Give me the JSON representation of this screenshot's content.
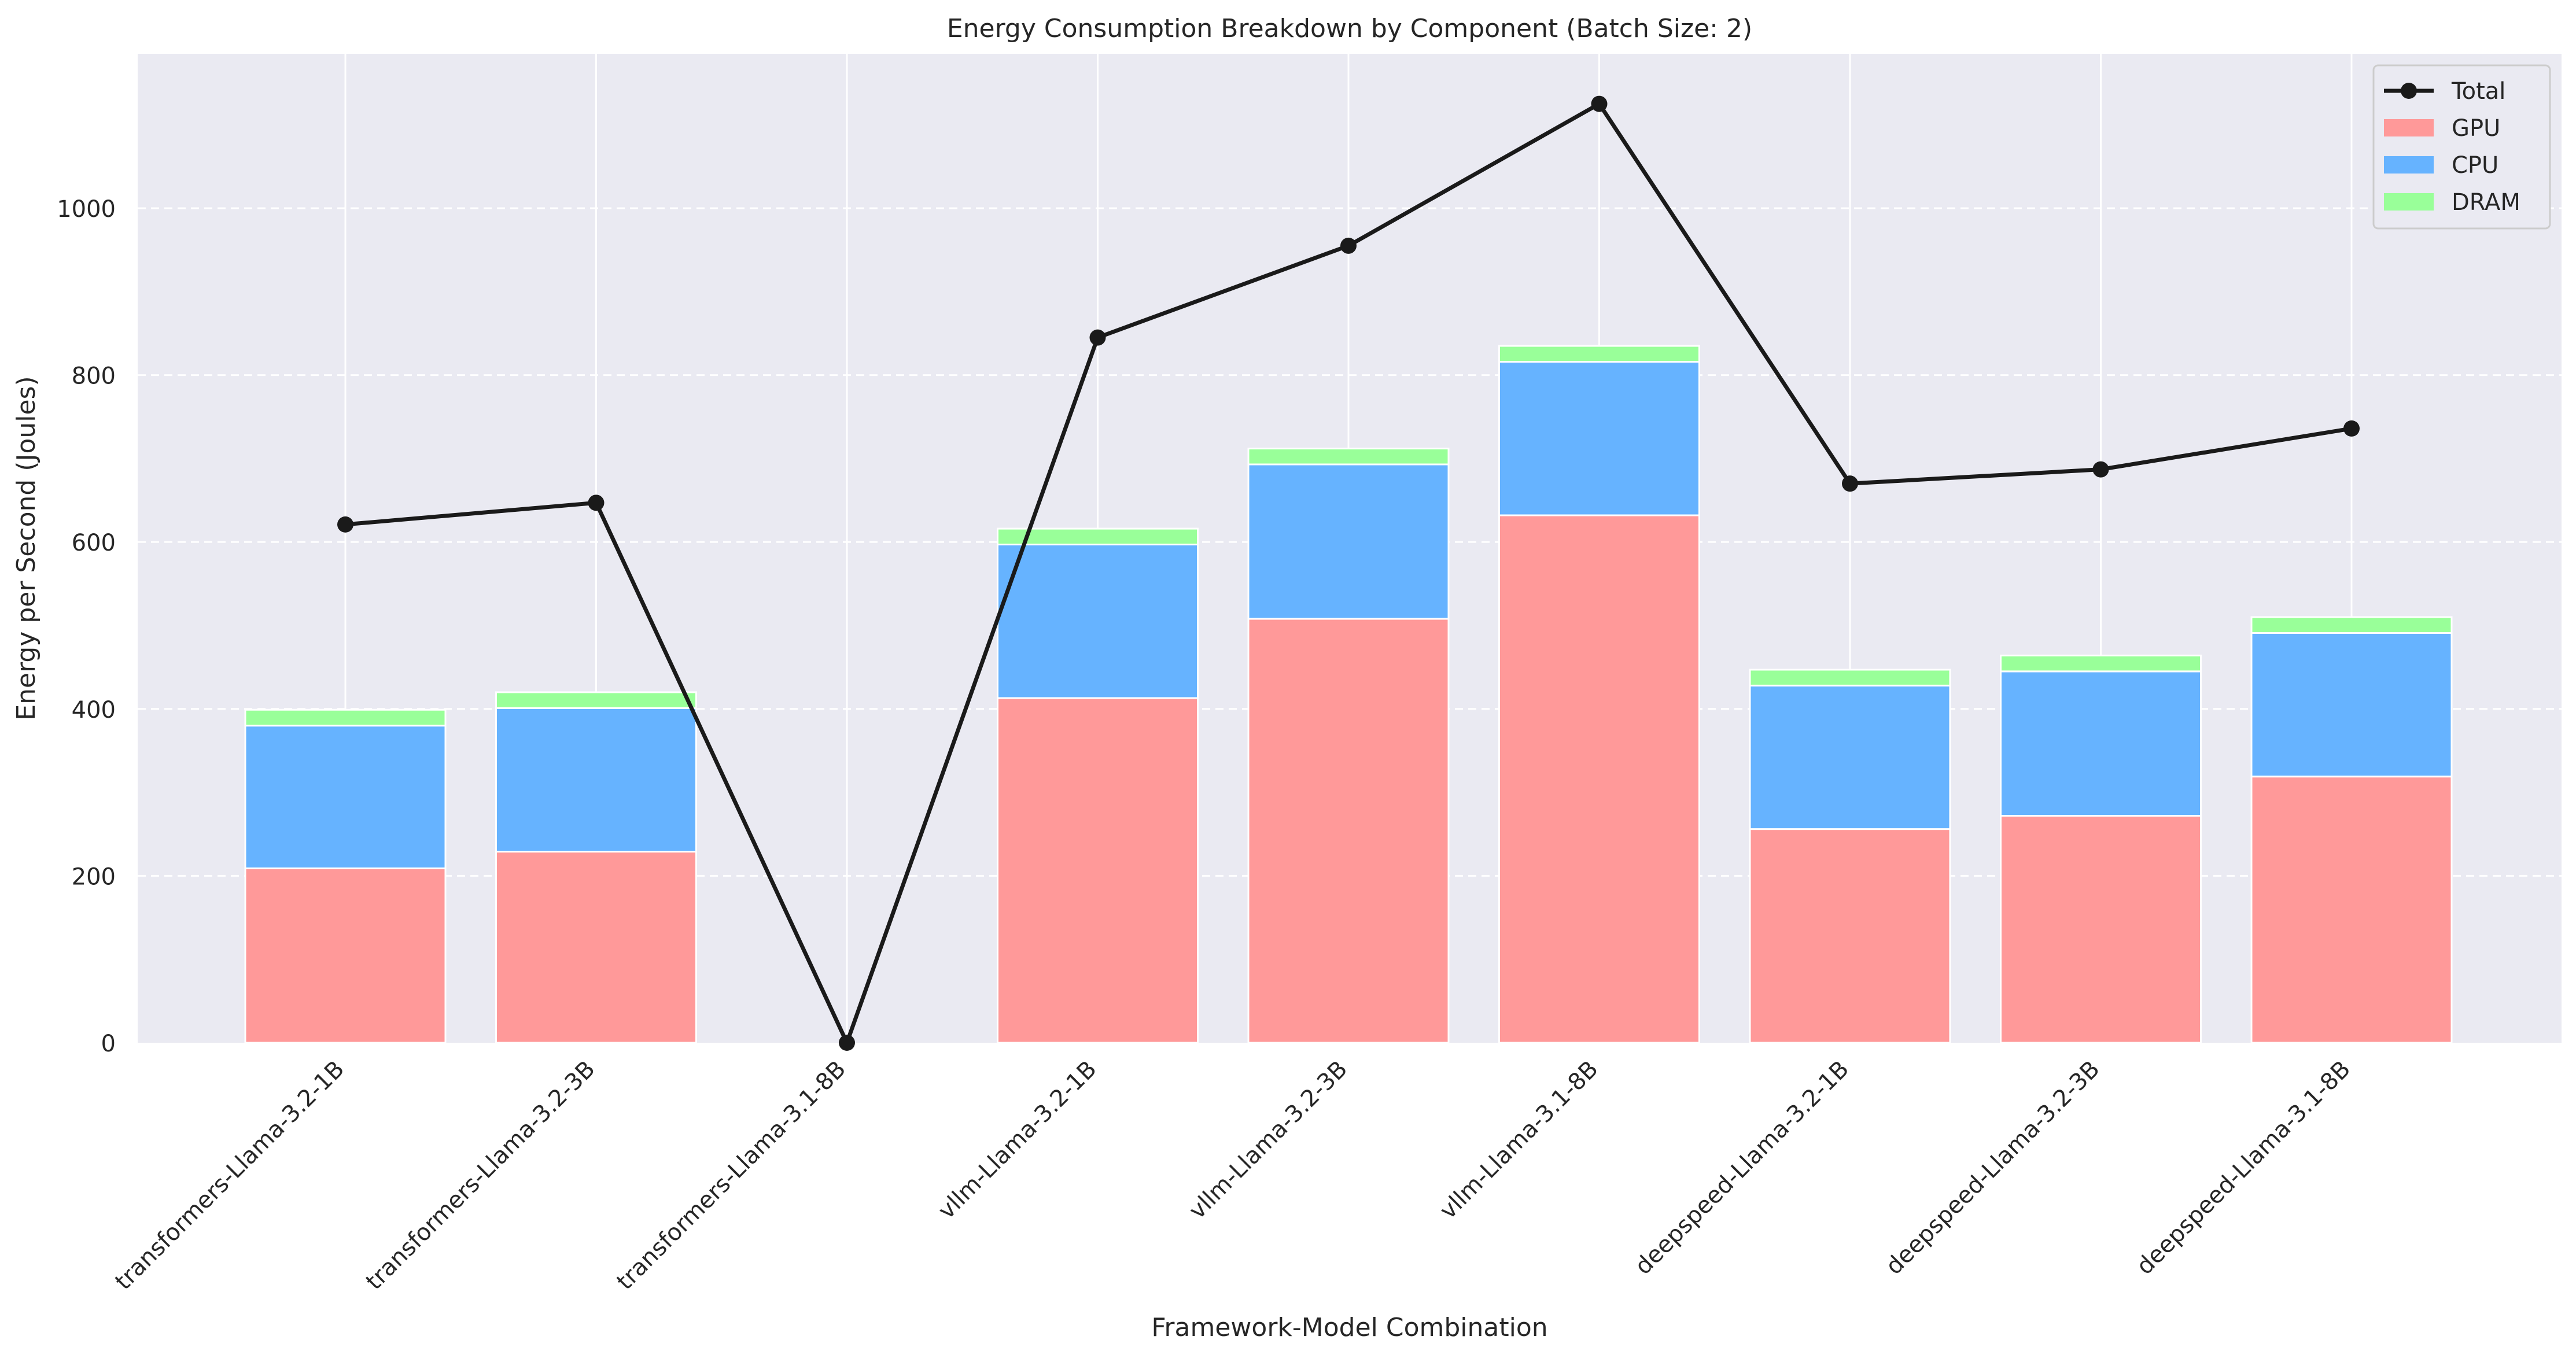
{
  "chart_data": {
    "type": "bar",
    "title": "Energy Consumption Breakdown by Component (Batch Size: 2)",
    "xlabel": "Framework-Model Combination",
    "ylabel": "Energy per Second (Joules)",
    "ylim": [
      0,
      1185
    ],
    "yticks": [
      0,
      200,
      400,
      600,
      800,
      1000
    ],
    "grid": true,
    "legend_position": "top-right",
    "categories": [
      "transformers-Llama-3.2-1B",
      "transformers-Llama-3.2-3B",
      "transformers-Llama-3.1-8B",
      "vllm-Llama-3.2-1B",
      "vllm-Llama-3.2-3B",
      "vllm-Llama-3.1-8B",
      "deepspeed-Llama-3.2-1B",
      "deepspeed-Llama-3.2-3B",
      "deepspeed-Llama-3.1-8B"
    ],
    "stacked_series": [
      {
        "name": "GPU",
        "color": "#ff9999",
        "values": [
          209,
          229,
          0,
          413,
          508,
          632,
          256,
          272,
          319
        ]
      },
      {
        "name": "CPU",
        "color": "#66b3ff",
        "values": [
          171,
          172,
          0,
          184,
          185,
          184,
          172,
          173,
          172
        ]
      },
      {
        "name": "DRAM",
        "color": "#99ff99",
        "values": [
          19,
          19,
          0,
          19,
          19,
          19,
          19,
          19,
          19
        ]
      }
    ],
    "line_series": {
      "name": "Total",
      "color": "#1a1a1a",
      "values": [
        621,
        647,
        0,
        845,
        955,
        1125,
        670,
        687,
        736
      ]
    }
  }
}
